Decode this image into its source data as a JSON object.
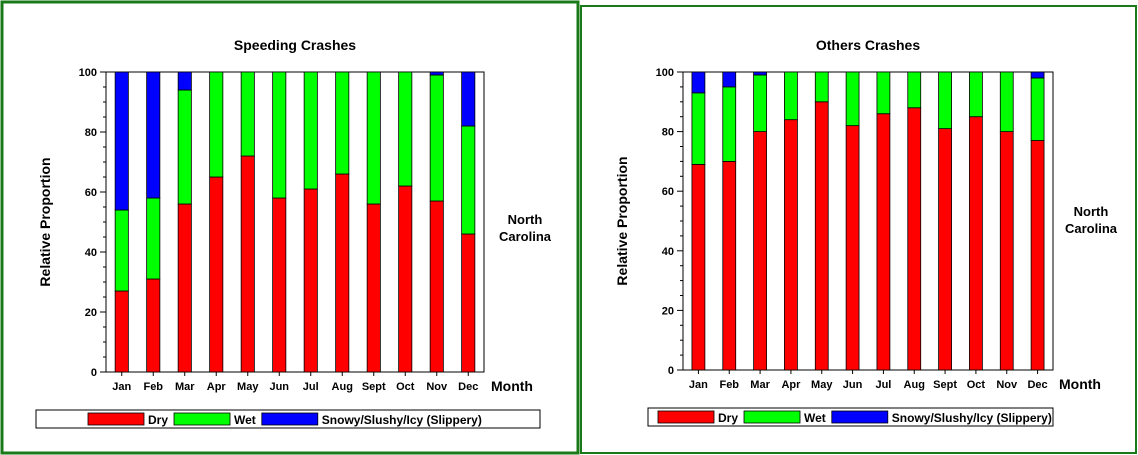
{
  "colors": {
    "dry": "#ff0000",
    "wet": "#00ff00",
    "slippery": "#0000ff",
    "frame_left": "#1a7a1a",
    "frame_right": "#1a7a1a"
  },
  "legend": [
    "Dry",
    "Wet",
    "Snowy/Slushy/Icy (Slippery)"
  ],
  "chart_data": [
    {
      "type": "bar",
      "stacked": true,
      "title": "Speeding Crashes",
      "xlabel": "Month",
      "ylabel": "Relative Proportion",
      "side_label": [
        "North",
        "Carolina"
      ],
      "ylim": [
        0,
        100
      ],
      "yticks": [
        0,
        20,
        40,
        60,
        80,
        100
      ],
      "grid": false,
      "legend_position": "bottom",
      "categories": [
        "Jan",
        "Feb",
        "Mar",
        "Apr",
        "May",
        "Jun",
        "Jul",
        "Aug",
        "Sept",
        "Oct",
        "Nov",
        "Dec"
      ],
      "series": [
        {
          "name": "Dry",
          "values": [
            27,
            31,
            56,
            65,
            72,
            58,
            61,
            66,
            56,
            62,
            57,
            46
          ]
        },
        {
          "name": "Wet",
          "values": [
            27,
            27,
            38,
            35,
            28,
            42,
            39,
            34,
            44,
            38,
            42,
            36
          ]
        },
        {
          "name": "Snowy/Slushy/Icy (Slippery)",
          "values": [
            46,
            42,
            6,
            0,
            0,
            0,
            0,
            0,
            0,
            0,
            1,
            18
          ]
        }
      ]
    },
    {
      "type": "bar",
      "stacked": true,
      "title": "Others Crashes",
      "xlabel": "Month",
      "ylabel": "Relative Proportion",
      "side_label": [
        "North",
        "Carolina"
      ],
      "ylim": [
        0,
        100
      ],
      "yticks": [
        0,
        20,
        40,
        60,
        80,
        100
      ],
      "grid": false,
      "legend_position": "bottom",
      "categories": [
        "Jan",
        "Feb",
        "Mar",
        "Apr",
        "May",
        "Jun",
        "Jul",
        "Aug",
        "Sept",
        "Oct",
        "Nov",
        "Dec"
      ],
      "series": [
        {
          "name": "Dry",
          "values": [
            69,
            70,
            80,
            84,
            90,
            82,
            86,
            88,
            81,
            85,
            80,
            77
          ]
        },
        {
          "name": "Wet",
          "values": [
            24,
            25,
            19,
            16,
            10,
            18,
            14,
            12,
            19,
            15,
            20,
            21
          ]
        },
        {
          "name": "Snowy/Slushy/Icy (Slippery)",
          "values": [
            7,
            5,
            1,
            0,
            0,
            0,
            0,
            0,
            0,
            0,
            0,
            2
          ]
        }
      ]
    }
  ]
}
